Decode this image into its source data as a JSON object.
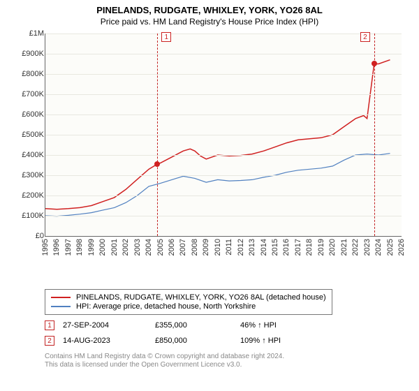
{
  "title": "PINELANDS, RUDGATE, WHIXLEY, YORK, YO26 8AL",
  "subtitle": "Price paid vs. HM Land Registry's House Price Index (HPI)",
  "chart": {
    "type": "line",
    "background_color": "#fcfcf9",
    "grid_color": "#e8e8e0",
    "axis_color": "#666666",
    "xlim": [
      1995,
      2026
    ],
    "ylim": [
      0,
      1000000
    ],
    "ytick_step": 100000,
    "yticks": [
      "£0",
      "£100K",
      "£200K",
      "£300K",
      "£400K",
      "£500K",
      "£600K",
      "£700K",
      "£800K",
      "£900K",
      "£1M"
    ],
    "xticks": [
      1995,
      1996,
      1997,
      1998,
      1999,
      2000,
      2001,
      2002,
      2003,
      2004,
      2005,
      2006,
      2007,
      2008,
      2009,
      2010,
      2011,
      2012,
      2013,
      2014,
      2015,
      2016,
      2017,
      2018,
      2019,
      2020,
      2021,
      2022,
      2023,
      2024,
      2025,
      2026
    ],
    "series": [
      {
        "name": "PINELANDS, RUDGATE, WHIXLEY, YORK, YO26 8AL (detached house)",
        "color": "#d02020",
        "line_width": 1.5,
        "data": [
          [
            1995,
            135000
          ],
          [
            1996,
            132000
          ],
          [
            1997,
            135000
          ],
          [
            1998,
            140000
          ],
          [
            1999,
            150000
          ],
          [
            2000,
            170000
          ],
          [
            2001,
            190000
          ],
          [
            2002,
            230000
          ],
          [
            2003,
            280000
          ],
          [
            2004,
            330000
          ],
          [
            2004.74,
            355000
          ],
          [
            2005,
            360000
          ],
          [
            2006,
            390000
          ],
          [
            2007,
            420000
          ],
          [
            2007.6,
            430000
          ],
          [
            2008,
            420000
          ],
          [
            2008.5,
            395000
          ],
          [
            2009,
            380000
          ],
          [
            2009.5,
            390000
          ],
          [
            2010,
            400000
          ],
          [
            2011,
            395000
          ],
          [
            2012,
            398000
          ],
          [
            2013,
            405000
          ],
          [
            2014,
            420000
          ],
          [
            2015,
            440000
          ],
          [
            2016,
            460000
          ],
          [
            2017,
            475000
          ],
          [
            2018,
            480000
          ],
          [
            2019,
            485000
          ],
          [
            2020,
            500000
          ],
          [
            2021,
            540000
          ],
          [
            2022,
            580000
          ],
          [
            2022.7,
            595000
          ],
          [
            2023,
            580000
          ],
          [
            2023.62,
            850000
          ],
          [
            2024,
            850000
          ],
          [
            2025,
            870000
          ]
        ]
      },
      {
        "name": "HPI: Average price, detached house, North Yorkshire",
        "color": "#5080c0",
        "line_width": 1.2,
        "data": [
          [
            1995,
            100000
          ],
          [
            1996,
            98000
          ],
          [
            1997,
            102000
          ],
          [
            1998,
            108000
          ],
          [
            1999,
            115000
          ],
          [
            2000,
            128000
          ],
          [
            2001,
            140000
          ],
          [
            2002,
            165000
          ],
          [
            2003,
            200000
          ],
          [
            2004,
            245000
          ],
          [
            2005,
            260000
          ],
          [
            2006,
            278000
          ],
          [
            2007,
            295000
          ],
          [
            2008,
            285000
          ],
          [
            2009,
            265000
          ],
          [
            2010,
            278000
          ],
          [
            2011,
            272000
          ],
          [
            2012,
            274000
          ],
          [
            2013,
            278000
          ],
          [
            2014,
            290000
          ],
          [
            2015,
            300000
          ],
          [
            2016,
            315000
          ],
          [
            2017,
            325000
          ],
          [
            2018,
            330000
          ],
          [
            2019,
            335000
          ],
          [
            2020,
            345000
          ],
          [
            2021,
            375000
          ],
          [
            2022,
            400000
          ],
          [
            2023,
            405000
          ],
          [
            2024,
            400000
          ],
          [
            2025,
            408000
          ]
        ]
      }
    ],
    "sale_markers": [
      {
        "n": "1",
        "year": 2004.74,
        "price": 355000
      },
      {
        "n": "2",
        "year": 2023.62,
        "price": 850000
      }
    ],
    "marker_border": "#c22222",
    "dot_color": "#d02020"
  },
  "legend": {
    "rows": [
      {
        "color": "#d02020",
        "label": "PINELANDS, RUDGATE, WHIXLEY, YORK, YO26 8AL (detached house)"
      },
      {
        "color": "#5080c0",
        "label": "HPI: Average price, detached house, North Yorkshire"
      }
    ]
  },
  "sales": [
    {
      "n": "1",
      "date": "27-SEP-2004",
      "price": "£355,000",
      "pct": "46% ↑ HPI"
    },
    {
      "n": "2",
      "date": "14-AUG-2023",
      "price": "£850,000",
      "pct": "109% ↑ HPI"
    }
  ],
  "footer": {
    "l1": "Contains HM Land Registry data © Crown copyright and database right 2024.",
    "l2": "This data is licensed under the Open Government Licence v3.0."
  }
}
